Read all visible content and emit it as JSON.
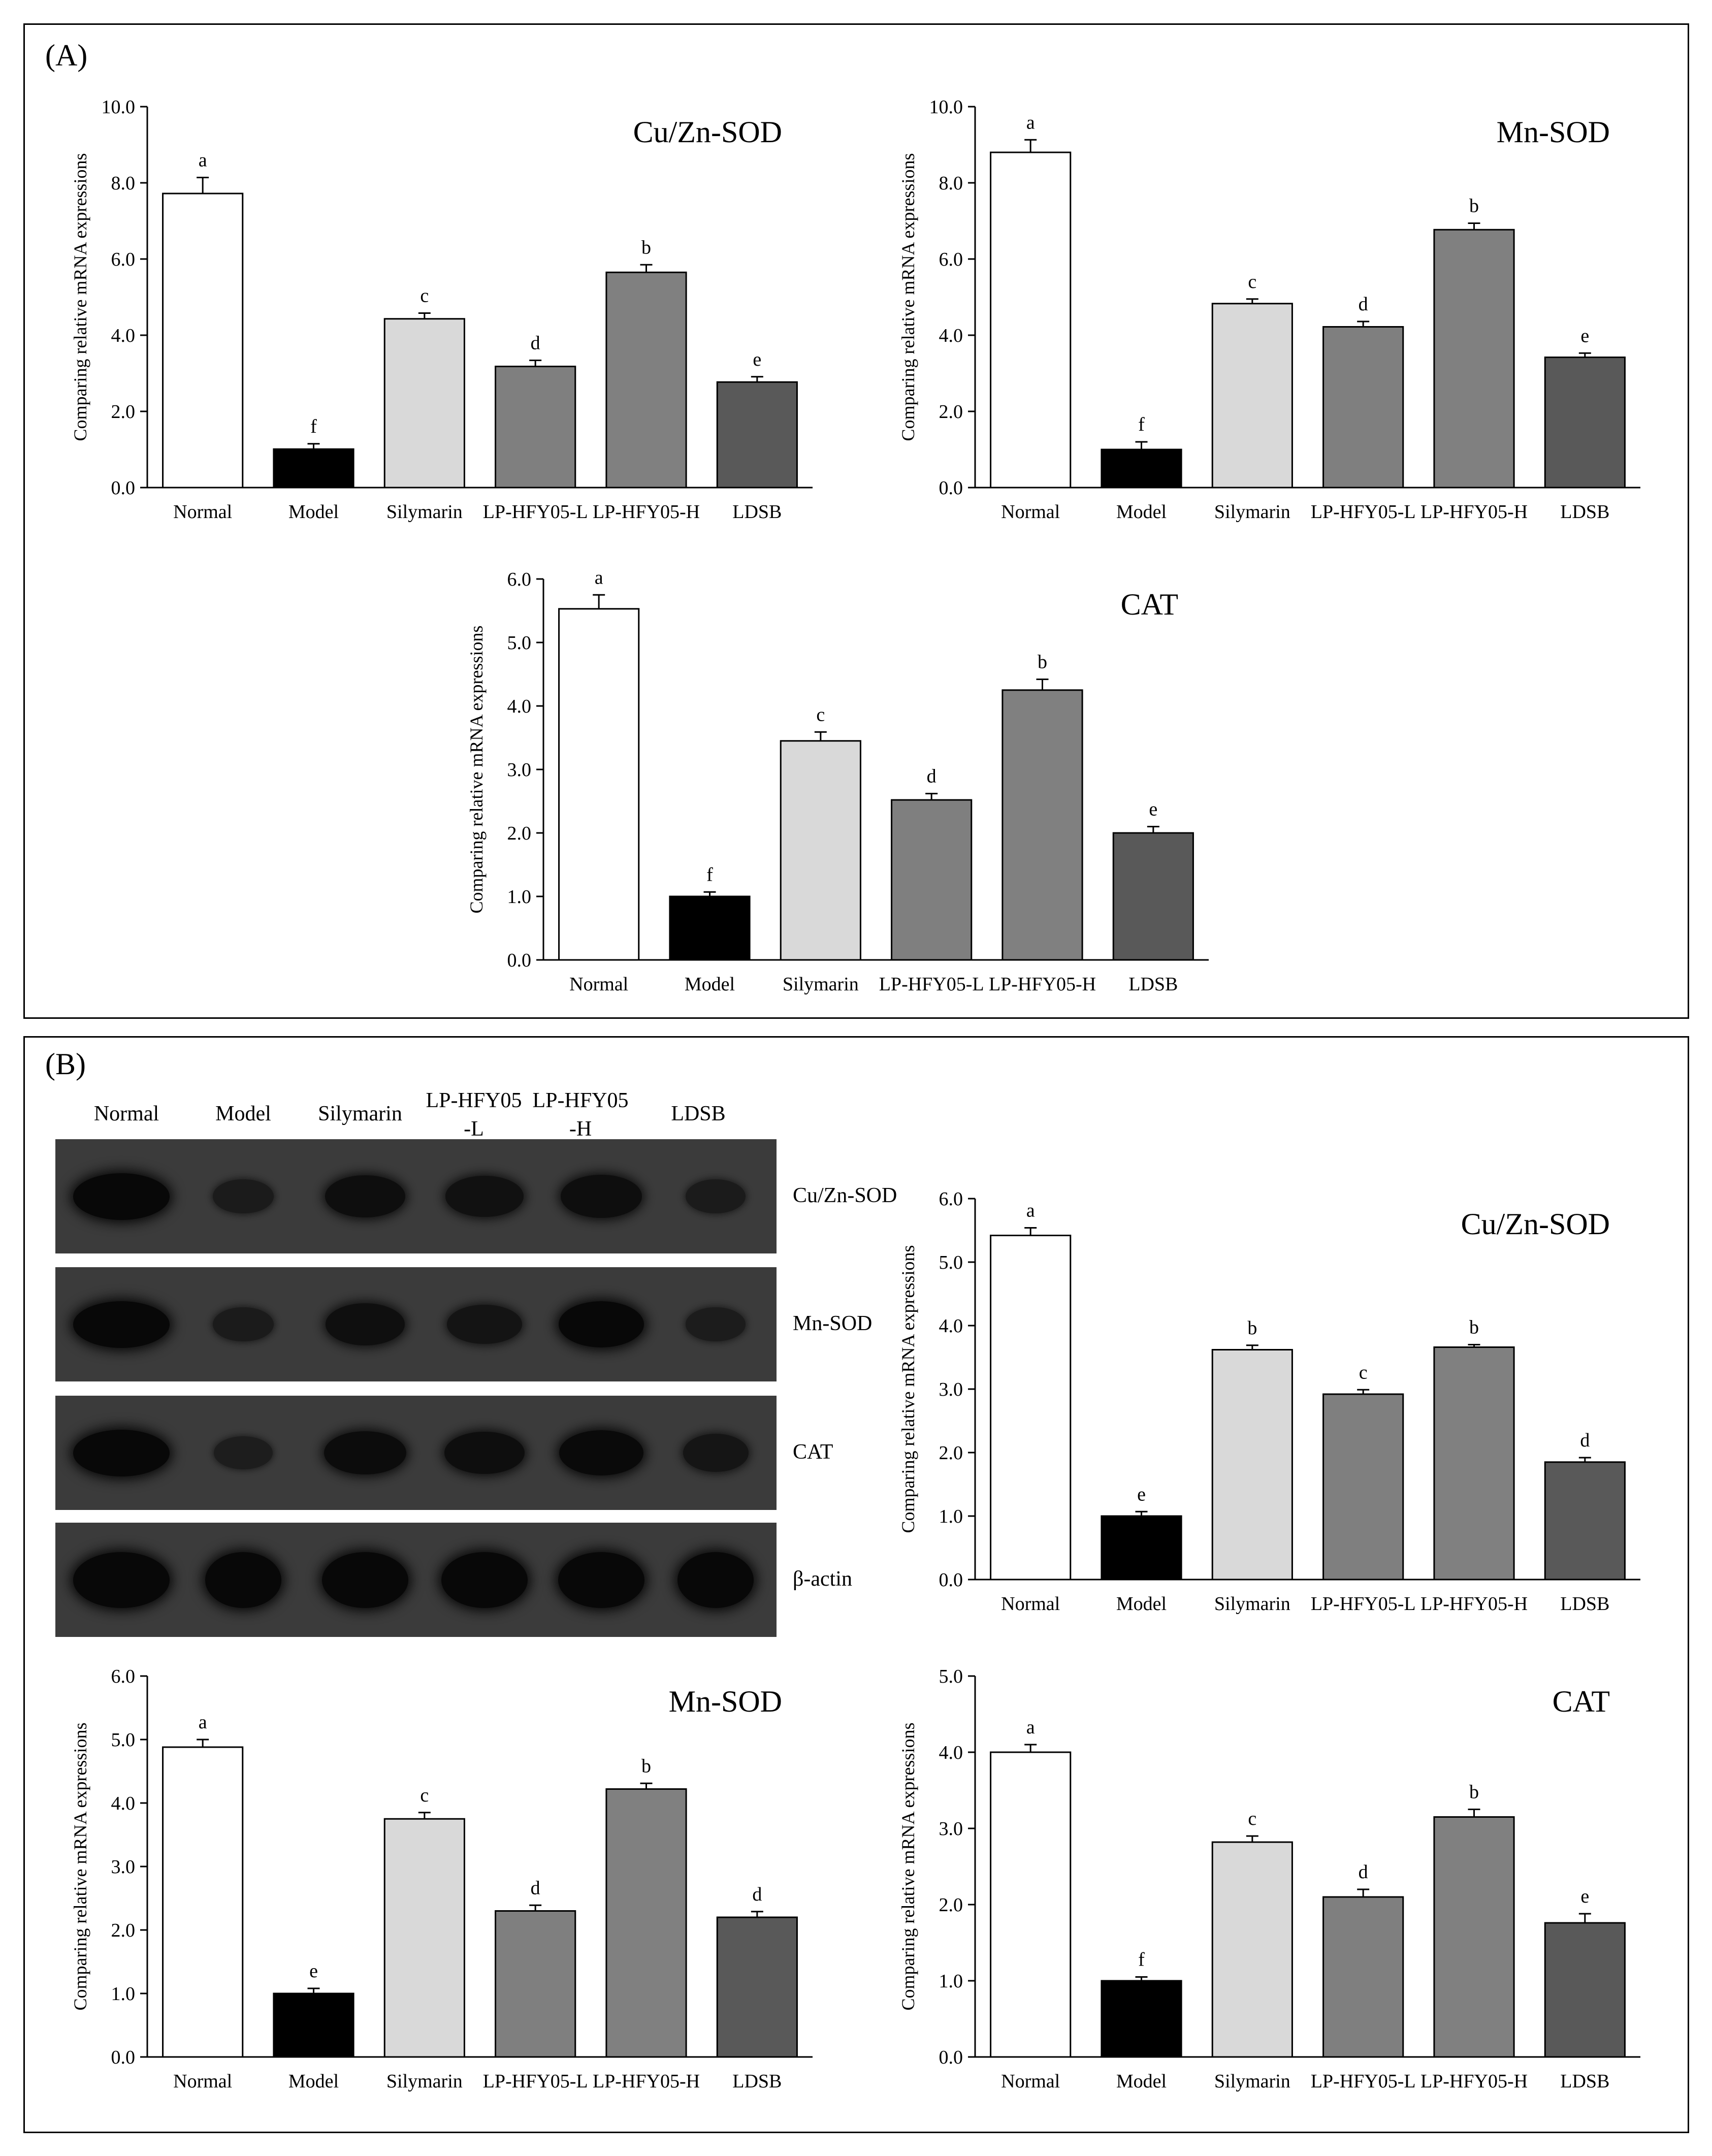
{
  "chart_data": [
    {
      "id": "A-cuzn-sod",
      "panel": "A",
      "type": "bar",
      "title": "Cu/Zn-SOD",
      "ylabel": "Comparing relative mRNA expressions",
      "xlabel": "",
      "ylim": [
        0,
        10
      ],
      "yticks": [
        "0.0",
        "2.0",
        "4.0",
        "6.0",
        "8.0",
        "10.0"
      ],
      "categories": [
        "Normal",
        "Model",
        "Silymarin",
        "LP-HFY05-L",
        "LP-HFY05-H",
        "LDSB"
      ],
      "values": [
        7.72,
        1.01,
        4.43,
        3.18,
        5.65,
        2.77
      ],
      "errors": [
        0.42,
        0.14,
        0.15,
        0.16,
        0.2,
        0.14
      ],
      "letters": [
        "a",
        "f",
        "c",
        "d",
        "b",
        "e"
      ]
    },
    {
      "id": "A-mn-sod",
      "panel": "A",
      "type": "bar",
      "title": "Mn-SOD",
      "ylabel": "Comparing relative mRNA expressions",
      "xlabel": "",
      "ylim": [
        0,
        10
      ],
      "yticks": [
        "0.0",
        "2.0",
        "4.0",
        "6.0",
        "8.0",
        "10.0"
      ],
      "categories": [
        "Normal",
        "Model",
        "Silymarin",
        "LP-HFY05-L",
        "LP-HFY05-H",
        "LDSB"
      ],
      "values": [
        8.8,
        1.0,
        4.83,
        4.22,
        6.77,
        3.42
      ],
      "errors": [
        0.33,
        0.2,
        0.12,
        0.14,
        0.17,
        0.11
      ],
      "letters": [
        "a",
        "f",
        "c",
        "d",
        "b",
        "e"
      ]
    },
    {
      "id": "A-cat",
      "panel": "A",
      "type": "bar",
      "title": "CAT",
      "ylabel": "Comparing relative mRNA expressions",
      "xlabel": "",
      "ylim": [
        0,
        6
      ],
      "yticks": [
        "0.0",
        "1.0",
        "2.0",
        "3.0",
        "4.0",
        "5.0",
        "6.0"
      ],
      "categories": [
        "Normal",
        "Model",
        "Silymarin",
        "LP-HFY05-L",
        "LP-HFY05-H",
        "LDSB"
      ],
      "values": [
        5.53,
        1.0,
        3.45,
        2.52,
        4.25,
        2.0
      ],
      "errors": [
        0.22,
        0.07,
        0.14,
        0.1,
        0.17,
        0.1
      ],
      "letters": [
        "a",
        "f",
        "c",
        "d",
        "b",
        "e"
      ]
    },
    {
      "id": "B-cuzn-sod",
      "panel": "B",
      "type": "bar",
      "title": "Cu/Zn-SOD",
      "ylabel": "Comparing relative mRNA expressions",
      "xlabel": "",
      "ylim": [
        0,
        6
      ],
      "yticks": [
        "0.0",
        "1.0",
        "2.0",
        "3.0",
        "4.0",
        "5.0",
        "6.0"
      ],
      "categories": [
        "Normal",
        "Model",
        "Silymarin",
        "LP-HFY05-L",
        "LP-HFY05-H",
        "LDSB"
      ],
      "values": [
        5.42,
        1.0,
        3.62,
        2.92,
        3.66,
        1.85
      ],
      "errors": [
        0.12,
        0.07,
        0.07,
        0.07,
        0.04,
        0.07
      ],
      "letters": [
        "a",
        "e",
        "b",
        "c",
        "b",
        "d"
      ]
    },
    {
      "id": "B-mn-sod",
      "panel": "B",
      "type": "bar",
      "title": "Mn-SOD",
      "ylabel": "Comparing relative mRNA expressions",
      "xlabel": "",
      "ylim": [
        0,
        6
      ],
      "yticks": [
        "0.0",
        "1.0",
        "2.0",
        "3.0",
        "4.0",
        "5.0",
        "6.0"
      ],
      "categories": [
        "Normal",
        "Model",
        "Silymarin",
        "LP-HFY05-L",
        "LP-HFY05-H",
        "LDSB"
      ],
      "values": [
        4.88,
        1.0,
        3.75,
        2.3,
        4.22,
        2.2
      ],
      "errors": [
        0.12,
        0.08,
        0.1,
        0.09,
        0.09,
        0.09
      ],
      "letters": [
        "a",
        "e",
        "c",
        "d",
        "b",
        "d"
      ]
    },
    {
      "id": "B-cat",
      "panel": "B",
      "type": "bar",
      "title": "CAT",
      "ylabel": "Comparing relative mRNA expressions",
      "xlabel": "",
      "ylim": [
        0,
        5
      ],
      "yticks": [
        "0.0",
        "1.0",
        "2.0",
        "3.0",
        "4.0",
        "5.0"
      ],
      "categories": [
        "Normal",
        "Model",
        "Silymarin",
        "LP-HFY05-L",
        "LP-HFY05-H",
        "LDSB"
      ],
      "values": [
        4.0,
        1.0,
        2.82,
        2.1,
        3.15,
        1.76
      ],
      "errors": [
        0.1,
        0.05,
        0.08,
        0.1,
        0.1,
        0.12
      ],
      "letters": [
        "a",
        "f",
        "c",
        "d",
        "b",
        "e"
      ]
    }
  ],
  "panels": {
    "a_label": "(A)",
    "b_label": "(B)"
  },
  "western_blot": {
    "lanes": [
      "Normal",
      "Model",
      "Silymarin",
      "LP-HFY05\n-L",
      "LP-HFY05\n-H",
      "LDSB"
    ],
    "rows": [
      {
        "label": "Cu/Zn-SOD",
        "intensity": [
          1.0,
          0.42,
          0.8,
          0.72,
          0.82,
          0.4
        ]
      },
      {
        "label": "Mn-SOD",
        "intensity": [
          1.0,
          0.42,
          0.78,
          0.62,
          0.98,
          0.38
        ]
      },
      {
        "label": "CAT",
        "intensity": [
          1.0,
          0.35,
          0.85,
          0.8,
          0.92,
          0.6
        ]
      },
      {
        "label": "β-actin",
        "intensity": [
          1.0,
          1.0,
          1.0,
          1.0,
          1.0,
          1.0
        ]
      }
    ]
  },
  "colors": {
    "normal": "#ffffff",
    "model": "#000000",
    "silymarin": "#d9d9d9",
    "lp_l": "#7f7f7f",
    "lp_h": "#808080",
    "ldsb": "#595959",
    "blot_bg": "#3b3b3b",
    "band": "#080808"
  }
}
